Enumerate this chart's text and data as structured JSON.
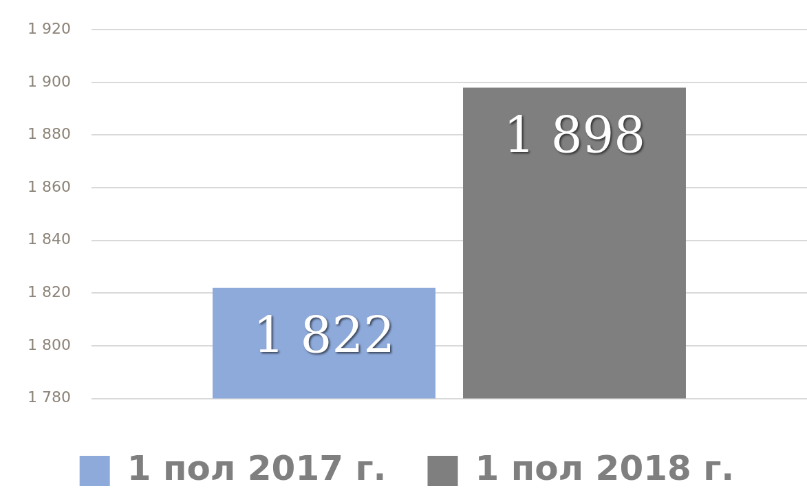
{
  "chart_data": {
    "type": "bar",
    "categories": [
      null
    ],
    "series": [
      {
        "name": "1 пол 2017 г.",
        "color": "#8eaadb",
        "values": [
          1822
        ],
        "value_labels": [
          "1 822"
        ]
      },
      {
        "name": "1 пол 2018 г.",
        "color": "#7f7f7f",
        "values": [
          1898
        ],
        "value_labels": [
          "1 898"
        ]
      }
    ],
    "ylim": [
      1780,
      1920
    ],
    "yticks": [
      {
        "value": 1780,
        "label": "1 780"
      },
      {
        "value": 1800,
        "label": "1 800"
      },
      {
        "value": 1820,
        "label": "1 820"
      },
      {
        "value": 1840,
        "label": "1 840"
      },
      {
        "value": 1860,
        "label": "1 860"
      },
      {
        "value": 1880,
        "label": "1 880"
      },
      {
        "value": 1900,
        "label": "1 900"
      },
      {
        "value": 1920,
        "label": "1 920"
      }
    ],
    "grid": "y",
    "legend": "bottom"
  }
}
